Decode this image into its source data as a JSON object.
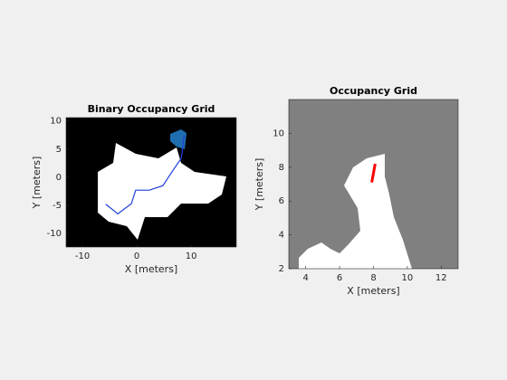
{
  "chart_data": [
    {
      "type": "line",
      "title": "Binary Occupancy Grid",
      "xlabel": "X [meters]",
      "ylabel": "Y [meters]",
      "xlim": [
        -13,
        18.3
      ],
      "ylim": [
        -12.4,
        10.6
      ],
      "xticks": [
        -10,
        0,
        10
      ],
      "yticks": [
        -10,
        -5,
        0,
        5,
        10
      ],
      "series": [
        {
          "color": "#1f3fd6",
          "x": [
            -5.7,
            -3.5,
            -1,
            -0.2,
            2.3,
            4.8,
            6.5,
            8.2,
            8.7
          ],
          "values": [
            -4.8,
            -6.5,
            -4.7,
            -2.3,
            -2.3,
            -1.5,
            1,
            3.4,
            7.4
          ]
        }
      ]
    },
    {
      "type": "line",
      "title": "Occupancy Grid",
      "xlabel": "X [meters]",
      "ylabel": "Y [meters]",
      "xlim": [
        3,
        13
      ],
      "ylim": [
        2,
        12
      ],
      "xticks": [
        4,
        6,
        8,
        10,
        12
      ],
      "yticks": [
        2,
        4,
        6,
        8,
        10
      ],
      "series": [
        {
          "color": "#ff0000",
          "x": [
            8.1,
            7.9
          ],
          "values": [
            8.2,
            7.1
          ]
        }
      ]
    }
  ]
}
